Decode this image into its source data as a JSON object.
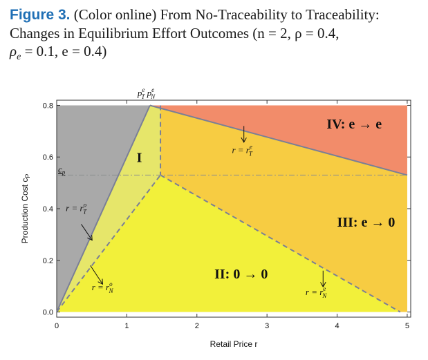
{
  "caption": {
    "figure_label": "Figure 3.",
    "text_line1": " (Color online) From No-Traceability to Traceability:",
    "text_line2": "Changes in Equilibrium Effort Outcomes (n = 2, ρ = 0.4,",
    "text_line3": "ρ",
    "text_line3_sub": "e",
    "text_line3_rest": " = 0.1, e = 0.4)"
  },
  "chart_data": {
    "type": "area",
    "xlabel": "Retail Price r",
    "ylabel": "Production Cost c",
    "ylabel_sub": "P",
    "xlim": [
      0,
      5.05
    ],
    "ylim": [
      -0.02,
      0.82
    ],
    "x_ticks": [
      0,
      1,
      2,
      3,
      4,
      5
    ],
    "y_ticks": [
      0.0,
      0.2,
      0.4,
      0.6,
      0.8
    ],
    "x_tick_labels": [
      "0",
      "1",
      "2",
      "3",
      "4",
      "5"
    ],
    "y_tick_labels": [
      "0.0",
      "0.2",
      "0.4",
      "0.6",
      "0.8"
    ],
    "grid": false,
    "colors": {
      "gray_region": "#a9a9a9",
      "region_I": "#e6e66a",
      "region_II": "#f2f03a",
      "region_III": "#f7cc42",
      "region_IV": "#f28c6a",
      "solid_boundary": "#7a7f96",
      "dashed_boundary": "#7a7f96"
    },
    "key_points": {
      "p_T_e": [
        1.33,
        0.8
      ],
      "p_N_e": [
        1.48,
        0.8
      ],
      "c_p_bar": 0.53,
      "kink": [
        1.48,
        0.53
      ],
      "right_edge_solid_end": [
        5.0,
        0.53
      ],
      "dashed_to_zero_end": [
        4.9,
        0.0
      ]
    },
    "regions": [
      {
        "name": "I",
        "label": "I",
        "polygon": [
          [
            1.33,
            0.8
          ],
          [
            1.48,
            0.8
          ],
          [
            1.48,
            0.53
          ],
          [
            0.0,
            0.0
          ]
        ],
        "label_at": [
          1.14,
          0.58
        ]
      },
      {
        "name": "II",
        "label": "II: 0 → 0",
        "polygon": [
          [
            0.0,
            0.0
          ],
          [
            1.48,
            0.53
          ],
          [
            4.9,
            0.0
          ]
        ],
        "label_at": [
          2.25,
          0.13
        ]
      },
      {
        "name": "III",
        "label": "III: e → 0",
        "polygon": [
          [
            1.48,
            0.53
          ],
          [
            5.0,
            0.53
          ],
          [
            5.0,
            0.0
          ],
          [
            4.9,
            0.0
          ]
        ],
        "label_at": [
          4.0,
          0.33
        ]
      },
      {
        "name": "IV",
        "label": "IV: e → e",
        "polygon": [
          [
            1.33,
            0.8
          ],
          [
            5.0,
            0.8
          ],
          [
            5.0,
            0.53
          ]
        ],
        "label_at": [
          3.85,
          0.71
        ]
      }
    ],
    "boundaries": [
      {
        "name": "r = r_T^o",
        "style": "solid",
        "points": [
          [
            0.0,
            0.0
          ],
          [
            1.33,
            0.8
          ]
        ],
        "label": "r = r",
        "sub": "T",
        "sup": "o",
        "label_at": [
          0.13,
          0.39
        ],
        "arrow_from": [
          0.35,
          0.34
        ],
        "arrow_to": [
          0.5,
          0.28
        ]
      },
      {
        "name": "r = r_T^e",
        "style": "solid",
        "points": [
          [
            1.33,
            0.8
          ],
          [
            5.0,
            0.53
          ]
        ],
        "label": "r = r",
        "sub": "T",
        "sup": "e",
        "label_at": [
          2.5,
          0.615
        ],
        "arrow_from": [
          2.67,
          0.72
        ],
        "arrow_to": [
          2.67,
          0.66
        ]
      },
      {
        "name": "r = r_N^o",
        "style": "dashed",
        "points": [
          [
            0.0,
            0.0
          ],
          [
            1.48,
            0.53
          ]
        ],
        "label": "r = r",
        "sub": "N",
        "sup": "o",
        "label_at": [
          0.5,
          0.085
        ],
        "arrow_from": [
          0.48,
          0.18
        ],
        "arrow_to": [
          0.65,
          0.11
        ]
      },
      {
        "name": "r = r_N^e",
        "style": "dashed",
        "points": [
          [
            1.48,
            0.53
          ],
          [
            4.9,
            0.0
          ]
        ],
        "label": "r = r",
        "sub": "N",
        "sup": "e",
        "label_at": [
          3.55,
          0.065
        ],
        "arrow_from": [
          3.8,
          0.16
        ],
        "arrow_to": [
          3.8,
          0.1
        ]
      },
      {
        "name": "vertical-dashed",
        "style": "dashed",
        "points": [
          [
            1.48,
            0.8
          ],
          [
            1.48,
            0.53
          ]
        ]
      },
      {
        "name": "c_p-bar-line",
        "style": "dashdot",
        "points": [
          [
            0.0,
            0.53
          ],
          [
            5.0,
            0.53
          ]
        ]
      }
    ],
    "top_labels": {
      "p_T": "p",
      "p_T_sub": "T",
      "p_T_sup": "e",
      "p_N": "p",
      "p_N_sub": "N",
      "p_N_sup": "e"
    },
    "c_p_bar_label": "c",
    "c_p_bar_sub": "p"
  }
}
